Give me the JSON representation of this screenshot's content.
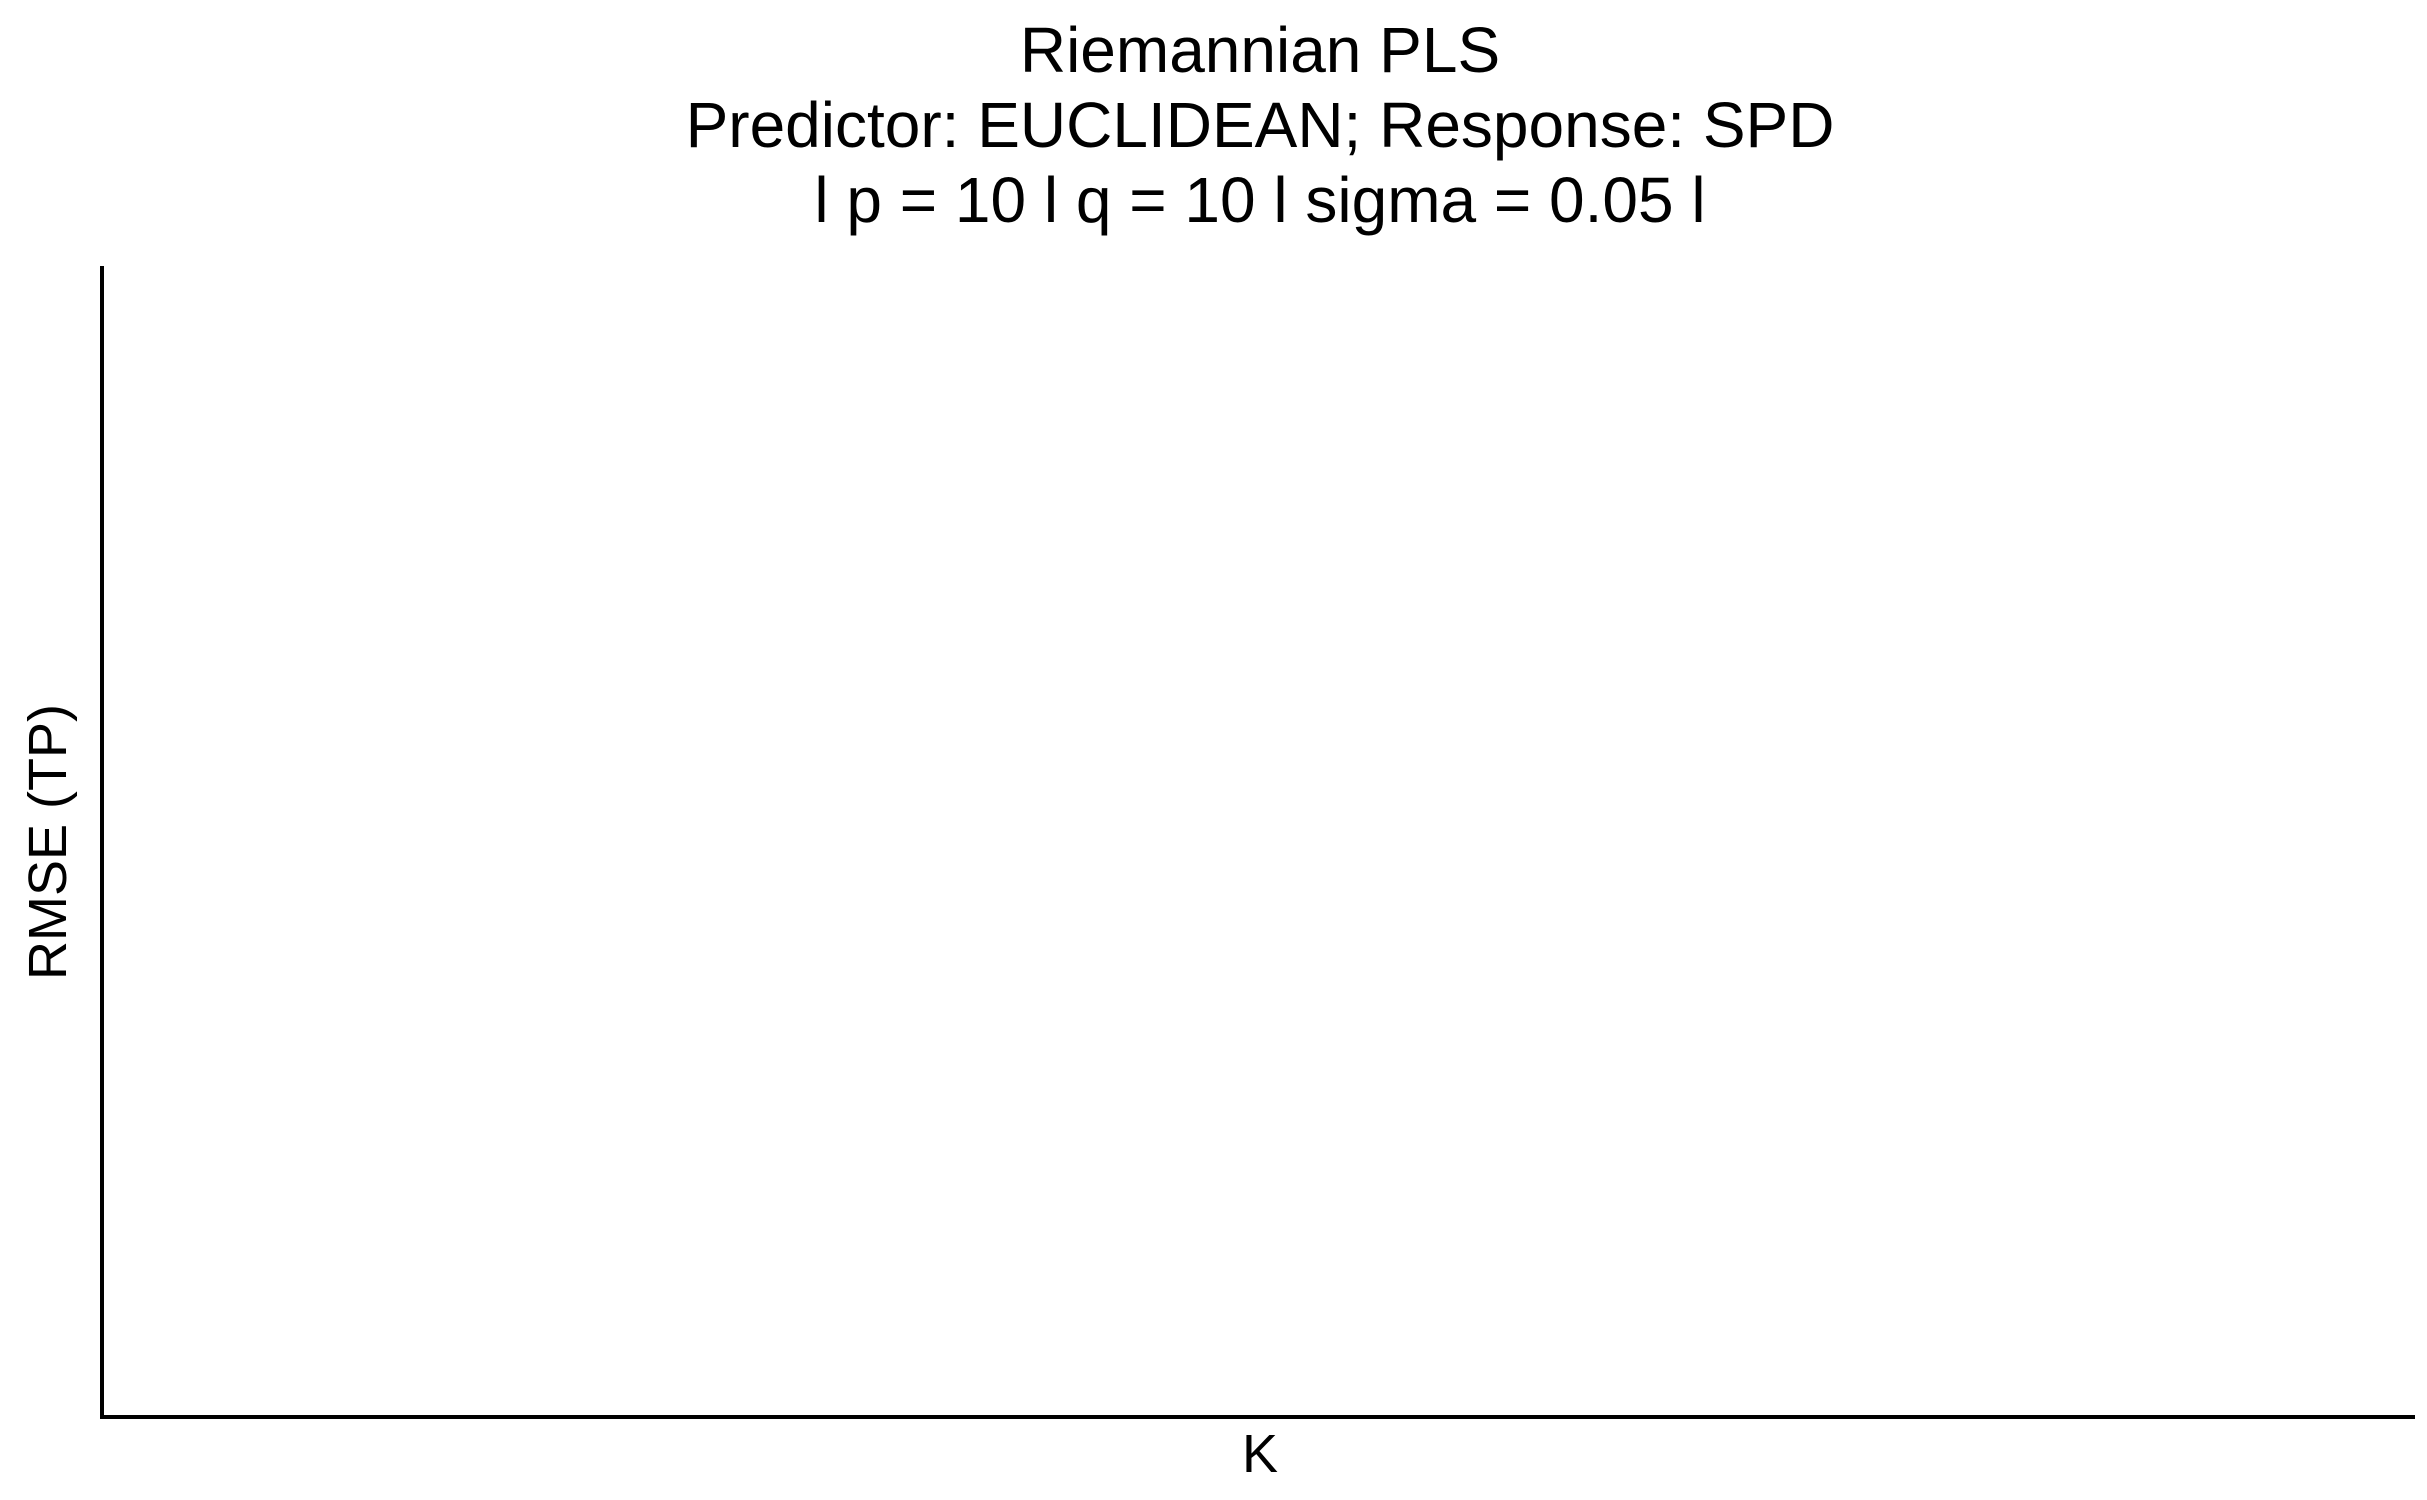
{
  "chart_data": {
    "type": "line",
    "title": "Riemannian PLS",
    "subtitle": [
      "Predictor: EUCLIDEAN; Response: SPD",
      "l p = 10 l q = 10 l sigma = 0.05 l"
    ],
    "xlabel": "K",
    "ylabel": "RMSE (TP)",
    "series": [],
    "grid": false,
    "legend": "none"
  },
  "colors": {
    "background": "#ffffff",
    "axis": "#000000",
    "text": "#000000"
  }
}
